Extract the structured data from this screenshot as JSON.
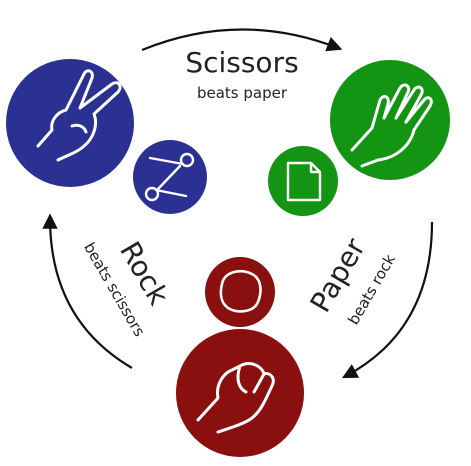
{
  "colors": {
    "scissors": "#2b3192",
    "paper": "#139413",
    "rock": "#8a0f0f",
    "arrow": "#111111",
    "icon_stroke": "#ffffff"
  },
  "scissors": {
    "title": "Scissors",
    "subtitle": "beats paper",
    "hand_icon": "peace-sign-hand",
    "item_icon": "scissors"
  },
  "paper": {
    "title": "Paper",
    "subtitle": "beats rock",
    "hand_icon": "open-palm-hand",
    "item_icon": "paper-sheet"
  },
  "rock": {
    "title": "Rock",
    "subtitle": "beats scissors",
    "hand_icon": "fist-hand",
    "item_icon": "rock"
  }
}
